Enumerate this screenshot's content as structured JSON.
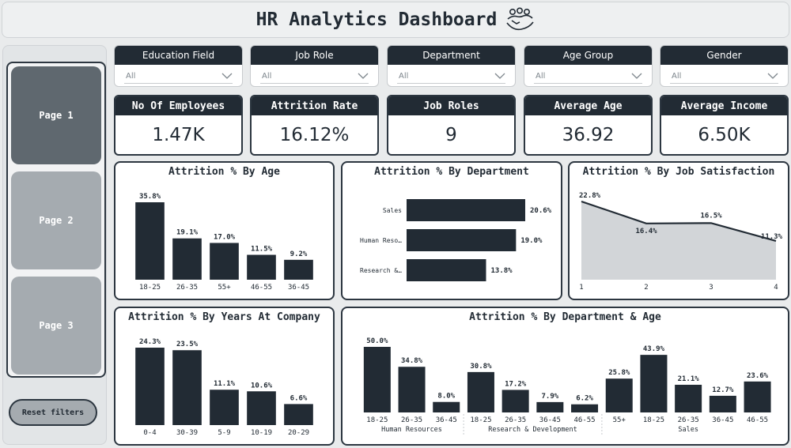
{
  "header": {
    "title": "HR Analytics Dashboard"
  },
  "nav": {
    "pages": [
      "Page 1",
      "Page 2",
      "Page 3"
    ],
    "active_page": "Page 1",
    "reset_label": "Reset filters"
  },
  "filters": [
    {
      "label": "Education Field",
      "value": "All"
    },
    {
      "label": "Job Role",
      "value": "All"
    },
    {
      "label": "Department",
      "value": "All"
    },
    {
      "label": "Age Group",
      "value": "All"
    },
    {
      "label": "Gender",
      "value": "All"
    }
  ],
  "kpis": [
    {
      "label": "No Of Employees",
      "value": "1.47K"
    },
    {
      "label": "Attrition Rate",
      "value": "16.12%"
    },
    {
      "label": "Job Roles",
      "value": "9"
    },
    {
      "label": "Average Age",
      "value": "36.92"
    },
    {
      "label": "Average Income",
      "value": "6.50K"
    }
  ],
  "colors": {
    "dark": "#222b34",
    "area_fill": "#d2d5d8",
    "background": "#e9ebec"
  },
  "chart_data": [
    {
      "type": "bar",
      "title": "Attrition % By Age",
      "categories": [
        "18-25",
        "26-35",
        "55+",
        "46-55",
        "36-45"
      ],
      "values": [
        35.8,
        19.1,
        17.0,
        11.5,
        9.2
      ],
      "labels": [
        "35.8%",
        "19.1%",
        "17.0%",
        "11.5%",
        "9.2%"
      ]
    },
    {
      "type": "bar",
      "orientation": "horizontal",
      "title": "Attrition % By Department",
      "categories": [
        "Sales",
        "Human Reso…",
        "Research &…"
      ],
      "values": [
        20.6,
        19.0,
        13.8
      ],
      "labels": [
        "20.6%",
        "19.0%",
        "13.8%"
      ]
    },
    {
      "type": "area",
      "title": "Attrition % By Job Satisfaction",
      "x": [
        1,
        2,
        3,
        4
      ],
      "values": [
        22.8,
        16.4,
        16.5,
        11.3
      ],
      "labels": [
        "22.8%",
        "16.4%",
        "16.5%",
        "11.3%"
      ]
    },
    {
      "type": "bar",
      "title": "Attrition % By Years At Company",
      "categories": [
        "0-4",
        "30-39",
        "5-9",
        "10-19",
        "20-29"
      ],
      "values": [
        24.3,
        23.5,
        11.1,
        10.6,
        6.6
      ],
      "labels": [
        "24.3%",
        "23.5%",
        "11.1%",
        "10.6%",
        "6.6%"
      ]
    },
    {
      "type": "bar",
      "title": "Attrition % By Department & Age",
      "groups": [
        {
          "name": "Human Resources",
          "categories": [
            "18-25",
            "26-35",
            "36-45"
          ],
          "values": [
            50.0,
            34.8,
            8.0
          ],
          "labels": [
            "50.0%",
            "34.8%",
            "8.0%"
          ]
        },
        {
          "name": "Research & Development",
          "categories": [
            "18-25",
            "26-35",
            "36-45",
            "46-55"
          ],
          "values": [
            30.8,
            17.2,
            7.9,
            6.2
          ],
          "labels": [
            "30.8%",
            "17.2%",
            "7.9%",
            "6.2%"
          ]
        },
        {
          "name": "Sales",
          "categories": [
            "55+",
            "18-25",
            "26-35",
            "36-45",
            "46-55"
          ],
          "values": [
            25.8,
            43.9,
            21.1,
            12.7,
            23.6
          ],
          "labels": [
            "25.8%",
            "43.9%",
            "21.1%",
            "12.7%",
            "23.6%"
          ]
        }
      ]
    }
  ]
}
